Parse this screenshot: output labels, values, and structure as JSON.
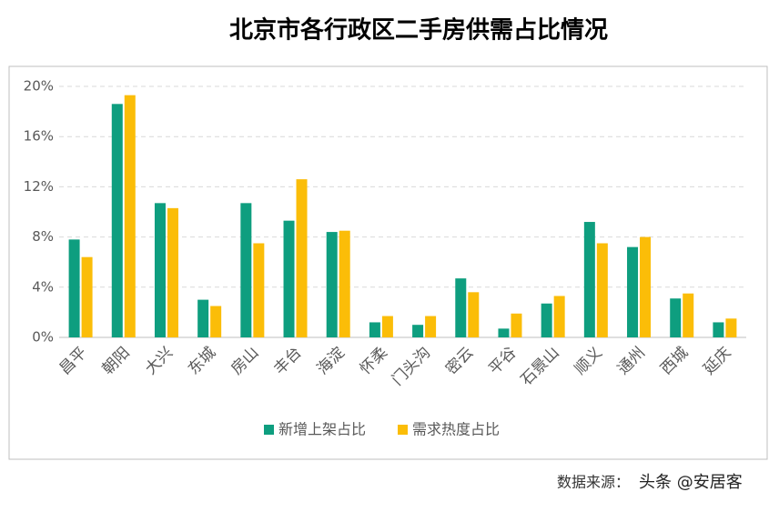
{
  "chart_data": {
    "type": "bar",
    "title": "北京市各行政区二手房供需占比情况",
    "categories": [
      "昌平",
      "朝阳",
      "大兴",
      "东城",
      "房山",
      "丰台",
      "海淀",
      "怀柔",
      "门头沟",
      "密云",
      "平谷",
      "石景山",
      "顺义",
      "通州",
      "西城",
      "延庆"
    ],
    "series": [
      {
        "name": "新增上架占比",
        "color": "#0e9e7f",
        "values": [
          7.8,
          18.6,
          10.7,
          3.0,
          10.7,
          9.3,
          8.4,
          1.2,
          1.0,
          4.7,
          0.7,
          2.7,
          9.2,
          7.2,
          3.1,
          1.2
        ]
      },
      {
        "name": "需求热度占比",
        "color": "#fbbd08",
        "values": [
          6.4,
          19.3,
          10.3,
          2.5,
          7.5,
          12.6,
          8.5,
          1.7,
          1.7,
          3.6,
          1.9,
          3.3,
          7.5,
          8.0,
          3.5,
          1.5
        ]
      }
    ],
    "ylim": [
      0,
      20
    ],
    "yticks": [
      {
        "value": 0,
        "label": "0%"
      },
      {
        "value": 4,
        "label": "4%"
      },
      {
        "value": 8,
        "label": "8%"
      },
      {
        "value": 12,
        "label": "12%"
      },
      {
        "value": 16,
        "label": "16%"
      },
      {
        "value": 20,
        "label": "20%"
      }
    ],
    "grid": true,
    "legend": "bottom",
    "source": "数据来源：",
    "watermark": "头条 @安居客"
  }
}
